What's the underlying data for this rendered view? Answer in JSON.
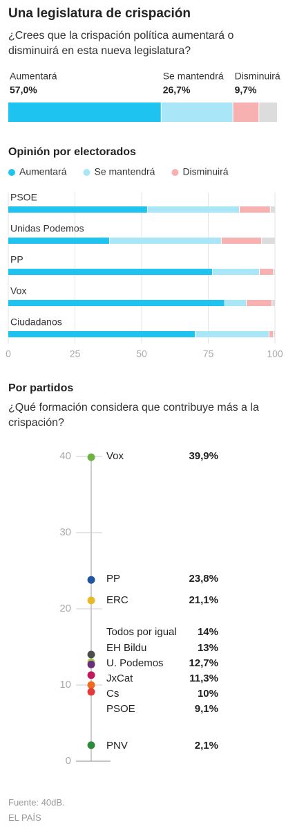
{
  "chart_data": [
    {
      "type": "bar",
      "orientation": "horizontal",
      "stacked": true,
      "title": "Una legislatura de crispación",
      "subtitle": "¿Crees que la crispación política aumentará o disminuirá en esta nueva legislatura?",
      "xlim": [
        0,
        100
      ],
      "series": [
        {
          "name": "Aumentará",
          "color": "#1fc3ef",
          "values": [
            57.0
          ],
          "value_labels": [
            "57,0%"
          ]
        },
        {
          "name": "Se mantendrá",
          "color": "#a9e6f8",
          "values": [
            26.7
          ],
          "value_labels": [
            "26,7%"
          ]
        },
        {
          "name": "Disminuirá",
          "color": "#f8b1b1",
          "values": [
            9.7
          ],
          "value_labels": [
            "9,7%"
          ]
        },
        {
          "name": null,
          "color": "#dcdcdc",
          "values": [
            6.6
          ]
        }
      ]
    },
    {
      "type": "bar",
      "orientation": "horizontal",
      "stacked": true,
      "title": "Opinión por electorados",
      "categories": [
        "PSOE",
        "Unidas Podemos",
        "PP",
        "Vox",
        "Ciudadanos"
      ],
      "xlim": [
        0,
        100
      ],
      "xticks": [
        0,
        25,
        50,
        75,
        100
      ],
      "grid": true,
      "series": [
        {
          "name": "Aumentará",
          "color": "#1fc3ef",
          "values": [
            52.3,
            38.1,
            76.7,
            81.3,
            70.2
          ]
        },
        {
          "name": "Se mantendrá",
          "color": "#a9e6f8",
          "values": [
            34.5,
            41.9,
            17.6,
            8.1,
            27.7
          ]
        },
        {
          "name": "Disminuirá",
          "color": "#f8b1b1",
          "values": [
            11.6,
            15.1,
            5.2,
            9.6,
            1.6
          ]
        },
        {
          "name": null,
          "color": "#dcdcdc",
          "values": [
            1.6,
            4.9,
            0.5,
            1.0,
            0.5
          ]
        }
      ]
    },
    {
      "type": "dot",
      "title": "Por partidos",
      "subtitle": "¿Qué formación considera que contribuye más a la crispación?",
      "categories": [
        "Vox",
        "PP",
        "ERC",
        "Todos por igual",
        "EH Bildu",
        "U. Podemos",
        "JxCat",
        "Cs",
        "PSOE",
        "PNV"
      ],
      "values": [
        39.9,
        23.8,
        21.1,
        14,
        13,
        12.7,
        11.3,
        10,
        9.1,
        2.1
      ],
      "value_labels": [
        "39,9%",
        "23,8%",
        "21,1%",
        "14%",
        "13%",
        "12,7%",
        "11,3%",
        "10%",
        "9,1%",
        "2,1%"
      ],
      "colors": [
        "#6cb33f",
        "#1f56a0",
        "#e9b824",
        "#4d4d4d",
        "#a7c94b",
        "#6a2f7c",
        "#c2185b",
        "#ef6a1f",
        "#e53935",
        "#2e8b3e"
      ],
      "ylim": [
        0,
        40
      ],
      "yticks": [
        0,
        10,
        20,
        30,
        40
      ]
    }
  ],
  "source": "Fuente: 40dB.",
  "publisher": "EL PAÍS"
}
